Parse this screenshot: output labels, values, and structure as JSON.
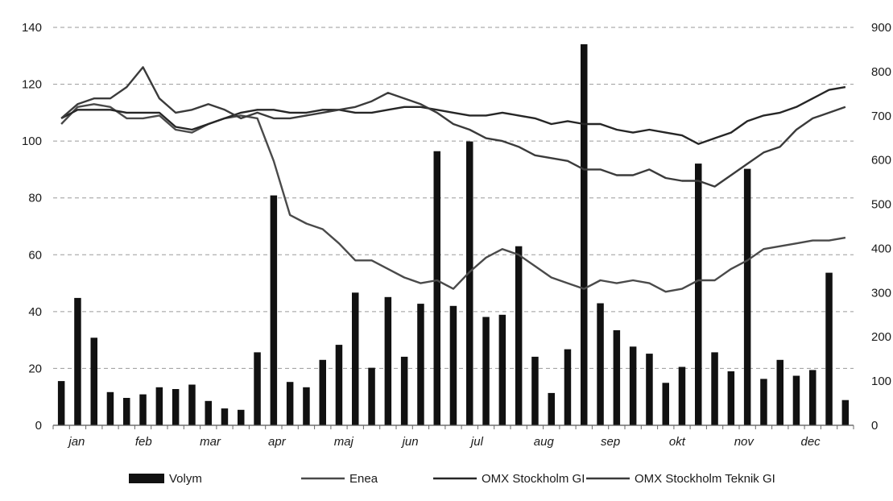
{
  "chart_data": {
    "type": "bar",
    "title": "",
    "xlabel": "",
    "ylabel": "",
    "y2label": "",
    "grid": true,
    "legend_position": "bottom",
    "months": [
      "jan",
      "feb",
      "mar",
      "apr",
      "maj",
      "jun",
      "jul",
      "aug",
      "sep",
      "okt",
      "nov",
      "dec"
    ],
    "ylim": [
      0,
      140
    ],
    "yticks": [
      0,
      20,
      40,
      60,
      80,
      100,
      120,
      140
    ],
    "y2lim": [
      0,
      900
    ],
    "y2ticks": [
      0,
      100,
      200,
      300,
      400,
      500,
      600,
      700,
      800,
      900
    ],
    "legend": [
      "Volym",
      "Enea",
      "OMX Stockholm GI",
      "OMX Stockholm Teknik GI"
    ],
    "colors": {
      "Volym": "#111111",
      "Enea": "#4a4a4a",
      "OMX Stockholm GI": "#262626",
      "OMX Stockholm Teknik GI": "#3b3b3b",
      "grid": "#9a9a9a"
    },
    "series": [
      {
        "name": "Volym",
        "type": "bar",
        "axis": "right",
        "values": [
          100,
          288,
          198,
          75,
          62,
          70,
          86,
          82,
          92,
          55,
          38,
          35,
          165,
          520,
          98,
          86,
          148,
          182,
          300,
          130,
          290,
          155,
          275,
          620,
          270,
          642,
          245,
          250,
          405,
          155,
          73,
          172,
          862,
          276,
          215,
          178,
          162,
          96,
          132,
          592,
          165,
          122,
          580,
          105,
          148,
          112,
          125,
          345,
          57
        ]
      },
      {
        "name": "Enea",
        "type": "line",
        "axis": "left",
        "values": [
          106,
          112,
          113,
          112,
          108,
          108,
          109,
          104,
          103,
          106,
          108,
          109,
          108,
          93,
          74,
          71,
          69,
          64,
          58,
          58,
          55,
          52,
          50,
          51,
          48,
          54,
          59,
          62,
          60,
          56,
          52,
          50,
          48,
          51,
          50,
          51,
          50,
          47,
          48,
          51,
          51,
          55,
          58,
          62,
          63,
          64,
          65,
          65,
          66
        ]
      },
      {
        "name": "OMX Stockholm GI",
        "type": "line",
        "axis": "left",
        "values": [
          108,
          111,
          111,
          111,
          110,
          110,
          110,
          105,
          104,
          106,
          108,
          110,
          111,
          111,
          110,
          110,
          111,
          111,
          110,
          110,
          111,
          112,
          112,
          111,
          110,
          109,
          109,
          110,
          109,
          108,
          106,
          107,
          106,
          106,
          104,
          103,
          104,
          103,
          102,
          99,
          101,
          103,
          107,
          109,
          110,
          112,
          115,
          118,
          119
        ]
      },
      {
        "name": "OMX Stockholm Teknik GI",
        "type": "line",
        "axis": "left",
        "values": [
          108,
          113,
          115,
          115,
          119,
          126,
          115,
          110,
          111,
          113,
          111,
          108,
          110,
          108,
          108,
          109,
          110,
          111,
          112,
          114,
          117,
          115,
          113,
          110,
          106,
          104,
          101,
          100,
          98,
          95,
          94,
          93,
          90,
          90,
          88,
          88,
          90,
          87,
          86,
          86,
          84,
          88,
          92,
          96,
          98,
          104,
          108,
          110,
          112
        ]
      }
    ]
  }
}
